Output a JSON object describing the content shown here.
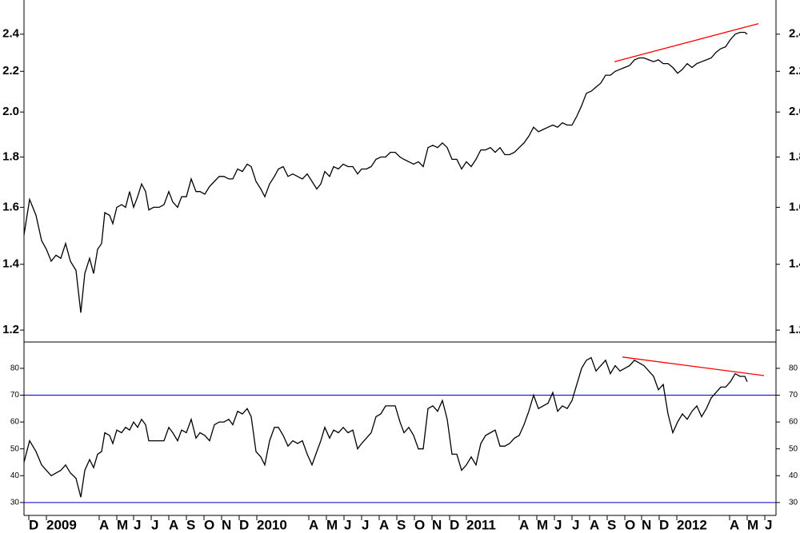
{
  "chart_data": {
    "type": "line",
    "xlim": [
      0,
      940
    ],
    "xticks": [
      {
        "value": 6,
        "label": "D"
      },
      {
        "value": 28,
        "label": "2009"
      },
      {
        "value": 94,
        "label": "A"
      },
      {
        "value": 116,
        "label": "M"
      },
      {
        "value": 137,
        "label": "J"
      },
      {
        "value": 159,
        "label": "J"
      },
      {
        "value": 181,
        "label": "A"
      },
      {
        "value": 203,
        "label": "S"
      },
      {
        "value": 225,
        "label": "O"
      },
      {
        "value": 247,
        "label": "N"
      },
      {
        "value": 269,
        "label": "D"
      },
      {
        "value": 291,
        "label": "2010"
      },
      {
        "value": 356,
        "label": "A"
      },
      {
        "value": 378,
        "label": "M"
      },
      {
        "value": 400,
        "label": "J"
      },
      {
        "value": 422,
        "label": "J"
      },
      {
        "value": 444,
        "label": "A"
      },
      {
        "value": 466,
        "label": "S"
      },
      {
        "value": 488,
        "label": "O"
      },
      {
        "value": 510,
        "label": "N"
      },
      {
        "value": 532,
        "label": "D"
      },
      {
        "value": 553,
        "label": "2011"
      },
      {
        "value": 619,
        "label": "A"
      },
      {
        "value": 641,
        "label": "M"
      },
      {
        "value": 663,
        "label": "J"
      },
      {
        "value": 685,
        "label": "J"
      },
      {
        "value": 707,
        "label": "A"
      },
      {
        "value": 729,
        "label": "S"
      },
      {
        "value": 751,
        "label": "O"
      },
      {
        "value": 772,
        "label": "N"
      },
      {
        "value": 794,
        "label": "D"
      },
      {
        "value": 816,
        "label": "2012"
      },
      {
        "value": 882,
        "label": "A"
      },
      {
        "value": 904,
        "label": "M"
      },
      {
        "value": 926,
        "label": "J"
      }
    ],
    "x": [
      0,
      7,
      15,
      22,
      28,
      34,
      40,
      46,
      52,
      58,
      65,
      71,
      76,
      82,
      87,
      92,
      97,
      101,
      107,
      111,
      116,
      122,
      127,
      132,
      137,
      142,
      147,
      152,
      156,
      162,
      169,
      175,
      181,
      186,
      192,
      197,
      203,
      209,
      215,
      220,
      226,
      232,
      238,
      244,
      250,
      256,
      261,
      267,
      273,
      279,
      284,
      290,
      296,
      301,
      307,
      313,
      318,
      324,
      330,
      336,
      342,
      348,
      354,
      360,
      366,
      371,
      376,
      382,
      387,
      393,
      399,
      405,
      411,
      417,
      422,
      428,
      434,
      440,
      446,
      452,
      458,
      464,
      470,
      475,
      481,
      487,
      493,
      499,
      505,
      511,
      517,
      523,
      529,
      535,
      541,
      547,
      553,
      559,
      565,
      571,
      577,
      583,
      589,
      595,
      601,
      607,
      613,
      619,
      625,
      631,
      637,
      643,
      649,
      655,
      661,
      667,
      673,
      679,
      685,
      691,
      697,
      703,
      709,
      715,
      721,
      727,
      733,
      739,
      745,
      751,
      757,
      763,
      769,
      775,
      781,
      787,
      793,
      799,
      805,
      811,
      817,
      823,
      829,
      835,
      841,
      847,
      853,
      859,
      865,
      871,
      877,
      883,
      889,
      895,
      901,
      904
    ],
    "panels": [
      {
        "log": true,
        "color": "#000000",
        "ylim": [
          1.167,
          2.6
        ],
        "yticks": [
          1.2,
          1.4,
          1.6,
          1.8,
          {
            "value": 2,
            "label": "2.0"
          },
          2.2,
          2.4
        ],
        "values": [
          1.5,
          1.63,
          1.57,
          1.48,
          1.45,
          1.41,
          1.43,
          1.42,
          1.47,
          1.41,
          1.38,
          1.25,
          1.37,
          1.42,
          1.37,
          1.45,
          1.47,
          1.58,
          1.57,
          1.54,
          1.6,
          1.61,
          1.6,
          1.66,
          1.6,
          1.64,
          1.69,
          1.66,
          1.59,
          1.6,
          1.6,
          1.61,
          1.66,
          1.62,
          1.6,
          1.64,
          1.64,
          1.71,
          1.66,
          1.66,
          1.65,
          1.68,
          1.7,
          1.72,
          1.72,
          1.71,
          1.71,
          1.75,
          1.74,
          1.77,
          1.76,
          1.7,
          1.67,
          1.64,
          1.69,
          1.72,
          1.75,
          1.76,
          1.72,
          1.73,
          1.72,
          1.71,
          1.73,
          1.7,
          1.67,
          1.69,
          1.74,
          1.72,
          1.76,
          1.75,
          1.77,
          1.76,
          1.76,
          1.73,
          1.75,
          1.75,
          1.76,
          1.79,
          1.8,
          1.8,
          1.82,
          1.82,
          1.8,
          1.79,
          1.78,
          1.77,
          1.78,
          1.76,
          1.84,
          1.85,
          1.84,
          1.86,
          1.84,
          1.79,
          1.79,
          1.75,
          1.78,
          1.76,
          1.79,
          1.83,
          1.83,
          1.84,
          1.82,
          1.84,
          1.81,
          1.81,
          1.82,
          1.84,
          1.86,
          1.89,
          1.93,
          1.91,
          1.92,
          1.93,
          1.94,
          1.93,
          1.95,
          1.94,
          1.94,
          1.98,
          2.03,
          2.09,
          2.1,
          2.12,
          2.14,
          2.18,
          2.18,
          2.2,
          2.21,
          2.22,
          2.23,
          2.26,
          2.27,
          2.27,
          2.26,
          2.25,
          2.26,
          2.24,
          2.24,
          2.22,
          2.19,
          2.21,
          2.24,
          2.22,
          2.24,
          2.25,
          2.26,
          2.27,
          2.3,
          2.32,
          2.33,
          2.37,
          2.4,
          2.41,
          2.41,
          2.4
        ],
        "trend": {
          "color": "#ff0000",
          "x": [
            738,
            918
          ],
          "y": [
            2.25,
            2.46
          ]
        }
      },
      {
        "log": false,
        "color": "#000000",
        "ylim": [
          25.2,
          89.8
        ],
        "yticks": [
          30,
          40,
          50,
          60,
          70,
          80
        ],
        "hlines": [
          30,
          70
        ],
        "hline_color": "#0000cc",
        "values": [
          45,
          53,
          49,
          44,
          42,
          40,
          41,
          42,
          44,
          41,
          39,
          32,
          42,
          46,
          43,
          48,
          49,
          56,
          55,
          52,
          57,
          56,
          58,
          57,
          60,
          58,
          61,
          59,
          53,
          53,
          53,
          53,
          58,
          56,
          53,
          57,
          56,
          61,
          54,
          56,
          55,
          53,
          59,
          60,
          60,
          61,
          59,
          64,
          63,
          65,
          62,
          49,
          47,
          44,
          53,
          58,
          58,
          55,
          51,
          53,
          52,
          53,
          48,
          44,
          49,
          53,
          58,
          54,
          57,
          56,
          58,
          56,
          57,
          50,
          52,
          54,
          56,
          62,
          63,
          66,
          66,
          66,
          60,
          56,
          58,
          55,
          50,
          50,
          65,
          66,
          64,
          68,
          61,
          48,
          48,
          42,
          44,
          47,
          44,
          52,
          55,
          56,
          57,
          51,
          51,
          52,
          54,
          55,
          59,
          64,
          70,
          65,
          66,
          67,
          71,
          64,
          66,
          65,
          68,
          74,
          80,
          83,
          84,
          79,
          81,
          83,
          78,
          81,
          79,
          80,
          81,
          83,
          82,
          81,
          79,
          77,
          72,
          74,
          63,
          56,
          60,
          63,
          61,
          64,
          66,
          62,
          65,
          69,
          71,
          73,
          73,
          75,
          78,
          77,
          77,
          75
        ],
        "trend": {
          "color": "#ff0000",
          "x": [
            748,
            925
          ],
          "y": [
            84.2,
            77.3
          ]
        }
      }
    ]
  }
}
